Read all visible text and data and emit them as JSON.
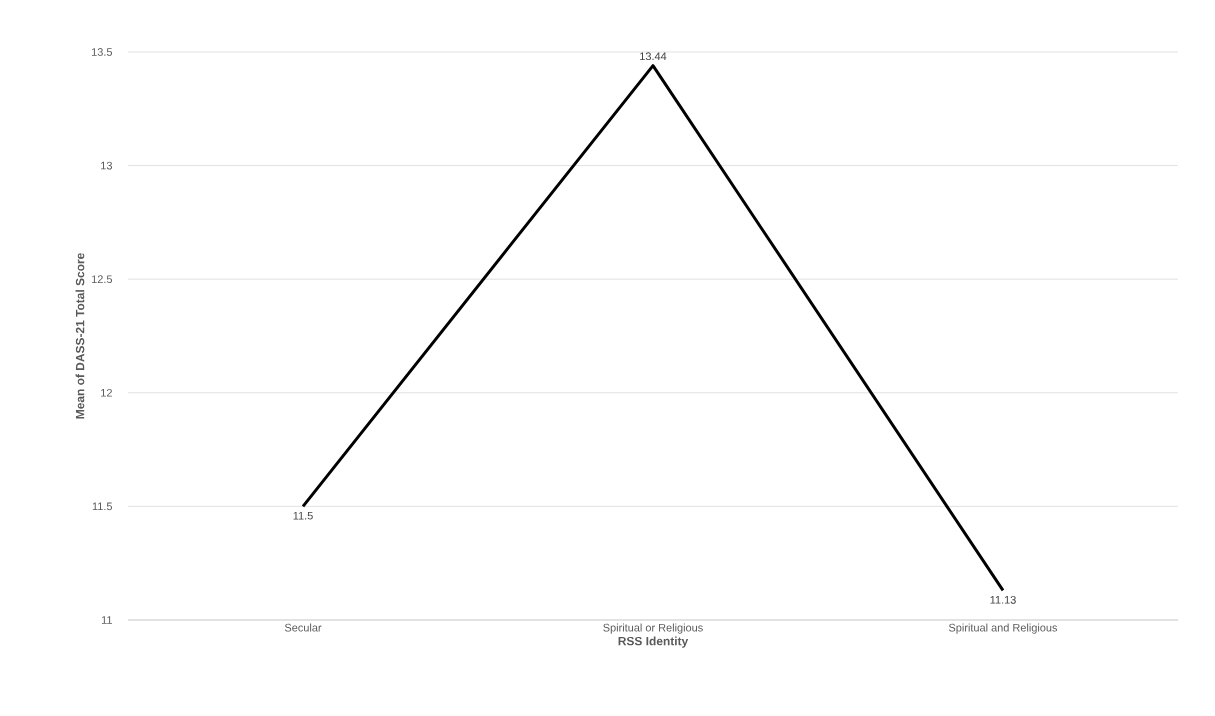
{
  "chart_data": {
    "type": "line",
    "xlabel": "RSS Identity",
    "ylabel": "Mean of DASS-21 Total Score",
    "categories": [
      "Secular",
      "Spiritual or Religious",
      "Spiritual and Religious"
    ],
    "values": [
      11.5,
      13.44,
      11.13
    ],
    "color": "#000000",
    "ylim": [
      11,
      13.5
    ],
    "yticks": [
      11,
      11.5,
      12,
      12.5,
      13,
      13.5
    ],
    "grid": "y",
    "data_labels": true
  }
}
